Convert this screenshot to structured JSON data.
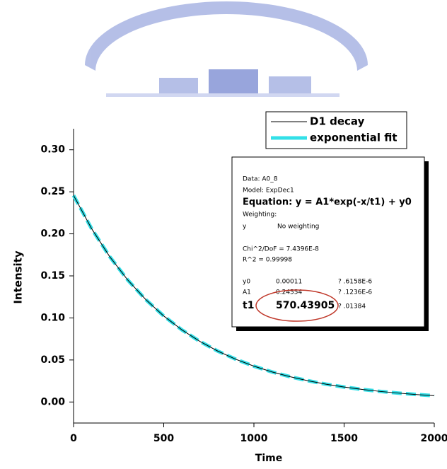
{
  "chart_data": {
    "type": "line",
    "x_label": "Time",
    "y_label": "Intensity",
    "x": [
      0,
      100,
      200,
      300,
      400,
      500,
      600,
      700,
      800,
      900,
      1000,
      1100,
      1200,
      1300,
      1400,
      1500,
      1600,
      1700,
      1800,
      1900,
      2000
    ],
    "series": [
      {
        "name": "D1 decay",
        "color": "#000000",
        "width": 1,
        "dashed": false,
        "values": [
          0.2457,
          0.2062,
          0.173,
          0.1452,
          0.1219,
          0.1023,
          0.0859,
          0.0721,
          0.0605,
          0.0508,
          0.0426,
          0.0358,
          0.0301,
          0.0253,
          0.0212,
          0.0178,
          0.015,
          0.0126,
          0.0106,
          0.0089,
          0.0075
        ]
      },
      {
        "name": "exponential fit",
        "color": "#33e0e8",
        "width": 5,
        "dashed": true,
        "values": [
          0.2457,
          0.2062,
          0.173,
          0.1452,
          0.1219,
          0.1023,
          0.0859,
          0.0721,
          0.0605,
          0.0508,
          0.0426,
          0.0358,
          0.0301,
          0.0253,
          0.0212,
          0.0178,
          0.015,
          0.0126,
          0.0106,
          0.0089,
          0.0075
        ]
      }
    ],
    "xlim": [
      0,
      2000
    ],
    "xticks": [
      0,
      500,
      1000,
      1500,
      2000
    ],
    "ylim": [
      -0.025,
      0.325
    ],
    "yticks": [
      {
        "value": 0,
        "label": "0.00"
      },
      {
        "value": 0.05,
        "label": "0.05"
      },
      {
        "value": 0.1,
        "label": "0.10"
      },
      {
        "value": 0.15,
        "label": "0.15"
      },
      {
        "value": 0.2,
        "label": "0.20"
      },
      {
        "value": 0.25,
        "label": "0.25"
      },
      {
        "value": 0.3,
        "label": "0.30"
      }
    ],
    "grid": false,
    "fit_report": {
      "data": "Data: A0_8",
      "model": "Model: ExpDec1",
      "equation": "Equation: y = A1*exp(-x/t1) + y0",
      "weighting": "Weighting:",
      "weighting_row": [
        "y",
        "No weighting"
      ],
      "chi2": "Chi^2/DoF    = 7.4396E-8",
      "r2": "R^2    =  0.99998",
      "parameters": [
        [
          "y0",
          "0.00011",
          "? .6158E-6"
        ],
        [
          "A1",
          "0.24554",
          "? .1236E-6"
        ],
        [
          "t1",
          "570.43905",
          "? .01384"
        ]
      ]
    }
  }
}
